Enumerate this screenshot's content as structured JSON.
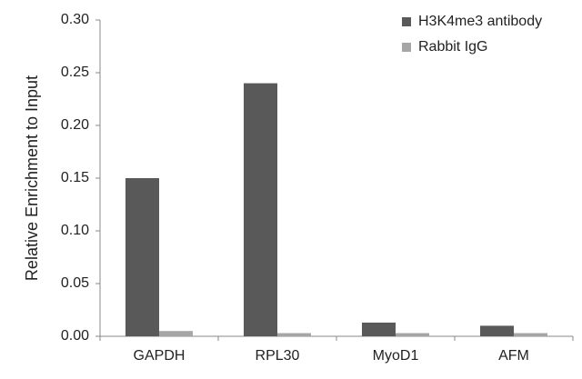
{
  "chart_data": {
    "type": "bar",
    "y_label": "Relative Enrichment to Input",
    "categories": [
      "GAPDH",
      "RPL30",
      "MyoD1",
      "AFM"
    ],
    "series": [
      {
        "name": "H3K4me3 antibody",
        "color": "#595959",
        "values": [
          0.15,
          0.24,
          0.013,
          0.01
        ]
      },
      {
        "name": "Rabbit IgG",
        "color": "#a6a6a6",
        "values": [
          0.005,
          0.003,
          0.003,
          0.003
        ]
      }
    ],
    "ylim": [
      0,
      0.3
    ],
    "yticks": [
      {
        "value": 0,
        "label": "0.00"
      },
      {
        "value": 0.05,
        "label": "0.05"
      },
      {
        "value": 0.1,
        "label": "0.10"
      },
      {
        "value": 0.15,
        "label": "0.15"
      },
      {
        "value": 0.2,
        "label": "0.20"
      },
      {
        "value": 0.25,
        "label": "0.25"
      },
      {
        "value": 0.3,
        "label": "0.30"
      }
    ],
    "grid": false,
    "legend": "top-right"
  }
}
